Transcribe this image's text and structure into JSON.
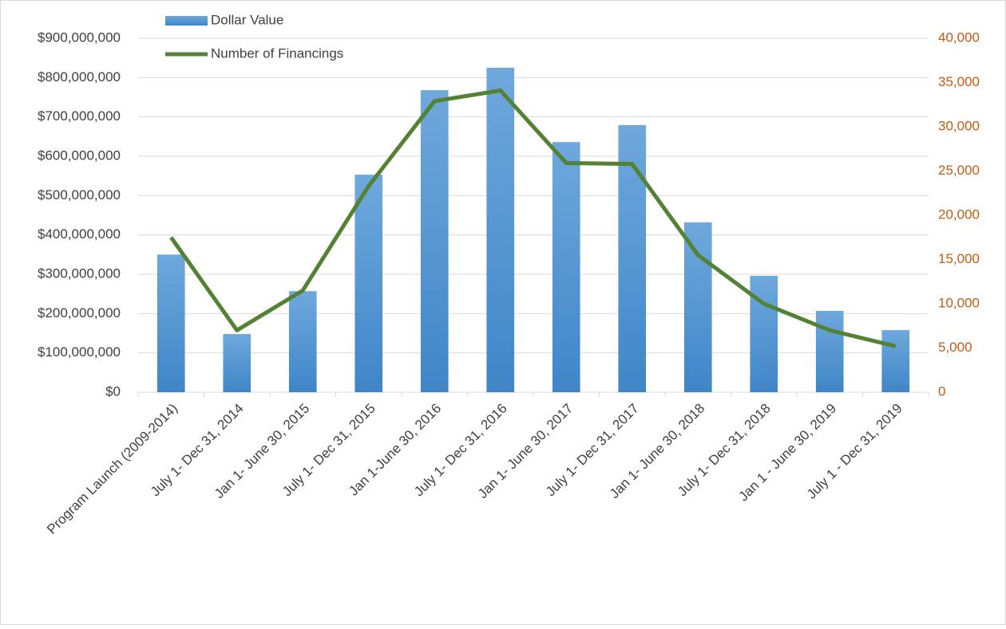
{
  "chart_data": {
    "type": "bar_line",
    "categories": [
      "Program Launch (2009-2014)",
      "July 1- Dec 31, 2014",
      "Jan 1- June 30, 2015",
      "July 1- Dec 31, 2015",
      "Jan 1-June 30, 2016",
      "July 1- Dec 31, 2016",
      "Jan 1- June 30, 2017",
      "July 1- Dec 31, 2017",
      "Jan 1- June 30, 2018",
      "July 1- Dec 31, 2018",
      "Jan 1 - June 30, 2019",
      "July 1 - Dec 31, 2019"
    ],
    "series": [
      {
        "name": "Dollar Value",
        "type": "bar",
        "color": "#5b9bd5",
        "values": [
          350000000,
          148000000,
          257000000,
          553000000,
          768000000,
          825000000,
          636000000,
          679000000,
          432000000,
          296000000,
          207000000,
          158000000
        ]
      },
      {
        "name": "Number of Financings",
        "type": "line",
        "axis": "y2",
        "color": "#548235",
        "values": [
          17500,
          7000,
          11500,
          23300,
          32900,
          34100,
          25900,
          25800,
          15500,
          10000,
          7000,
          5200
        ]
      }
    ],
    "ylim": [
      0,
      900000000
    ],
    "yticks": [
      {
        "value": 0,
        "label": "$0"
      },
      {
        "value": 100000000,
        "label": "$100,000,000"
      },
      {
        "value": 200000000,
        "label": "$200,000,000"
      },
      {
        "value": 300000000,
        "label": "$300,000,000"
      },
      {
        "value": 400000000,
        "label": "$400,000,000"
      },
      {
        "value": 500000000,
        "label": "$500,000,000"
      },
      {
        "value": 600000000,
        "label": "$600,000,000"
      },
      {
        "value": 700000000,
        "label": "$700,000,000"
      },
      {
        "value": 800000000,
        "label": "$800,000,000"
      },
      {
        "value": 900000000,
        "label": "$900,000,000"
      }
    ],
    "y2lim": [
      0,
      40000
    ],
    "y2ticks": [
      0,
      {
        "value": 5000,
        "label": "5,000"
      },
      {
        "value": 10000,
        "label": "10,000"
      },
      {
        "value": 15000,
        "label": "15,000"
      },
      {
        "value": 20000,
        "label": "20,000"
      },
      {
        "value": 25000,
        "label": "25,000"
      },
      {
        "value": 30000,
        "label": "30,000"
      },
      {
        "value": 35000,
        "label": "35,000"
      },
      {
        "value": 40000,
        "label": "40,000"
      }
    ],
    "grid": true,
    "legend": "top-left"
  }
}
